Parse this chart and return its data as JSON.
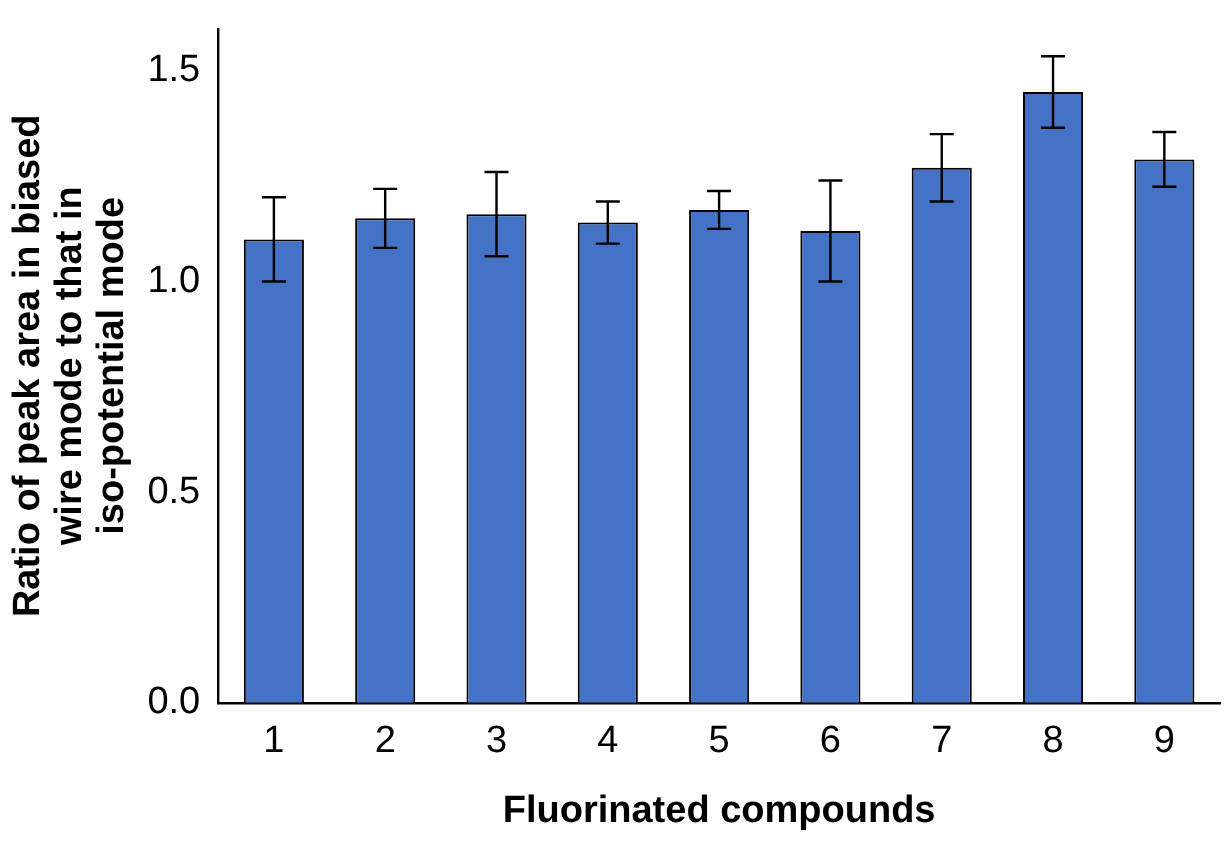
{
  "chart_data": {
    "type": "bar",
    "xlabel": "Fluorinated compounds",
    "ylabel": "Ratio of peak area in biased\nwire mode to that in\niso-potential mode",
    "categories": [
      "1",
      "2",
      "3",
      "4",
      "5",
      "6",
      "7",
      "8",
      "9"
    ],
    "values": [
      1.1,
      1.15,
      1.16,
      1.14,
      1.17,
      1.12,
      1.27,
      1.45,
      1.29
    ],
    "errors": [
      0.1,
      0.07,
      0.1,
      0.05,
      0.045,
      0.12,
      0.08,
      0.085,
      0.065
    ],
    "color": "#4472c4",
    "ylim": [
      0,
      1.6
    ],
    "yticks": [
      {
        "value": 0,
        "label": "0.0"
      },
      {
        "value": 0.5,
        "label": "0.5"
      },
      {
        "value": 1,
        "label": "1.0"
      },
      {
        "value": 1.5,
        "label": "1.5"
      }
    ],
    "grid": false,
    "legend": false
  }
}
